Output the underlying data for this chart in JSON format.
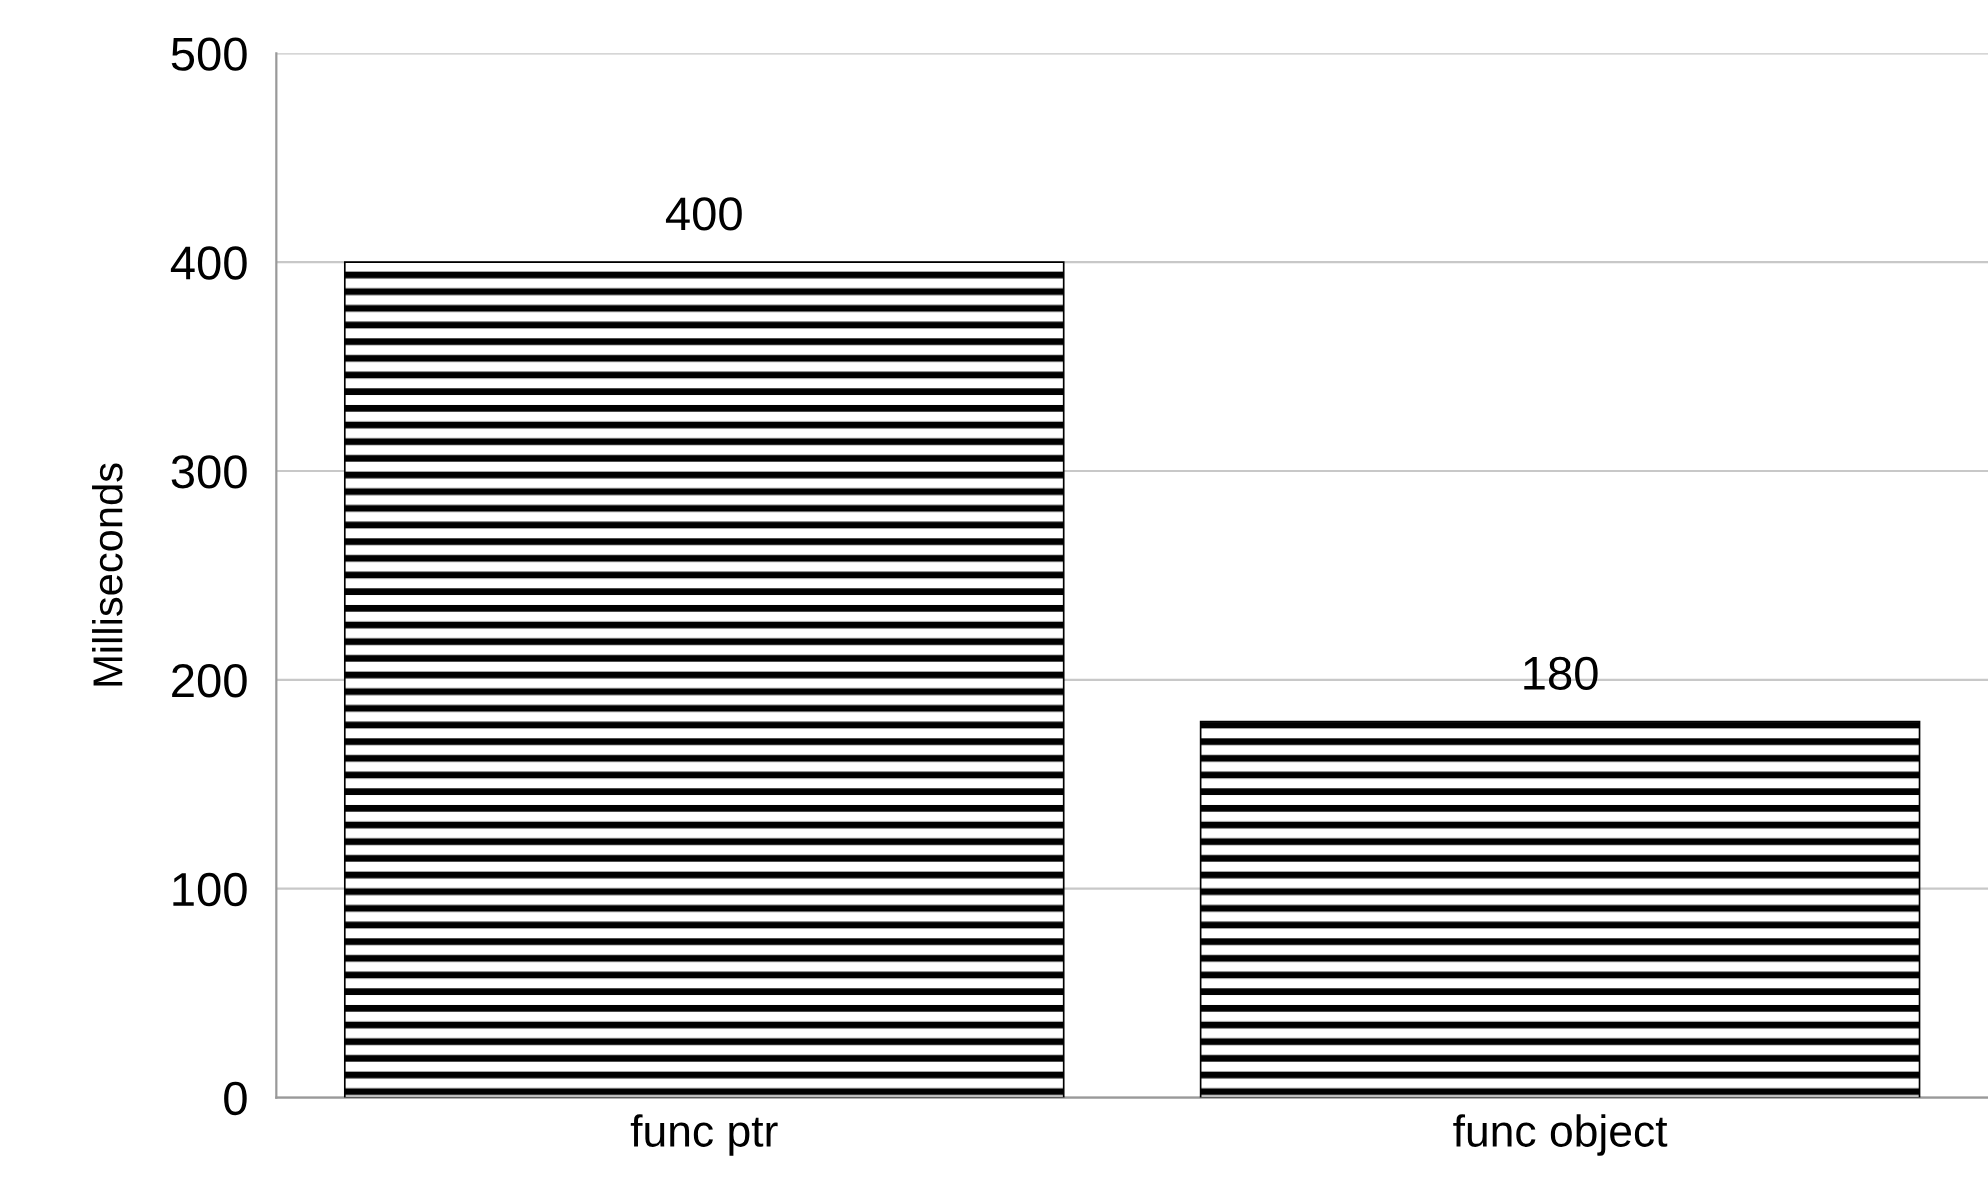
{
  "chart_data": {
    "type": "bar",
    "ylabel": "Milliseconds",
    "categories": [
      "func ptr",
      "func object"
    ],
    "values": [
      400,
      180
    ],
    "color": "#000000",
    "ylim": [
      0,
      500
    ],
    "yticks": [
      0,
      100,
      200,
      300,
      400,
      500
    ],
    "grid": "y",
    "data_labels": true
  }
}
